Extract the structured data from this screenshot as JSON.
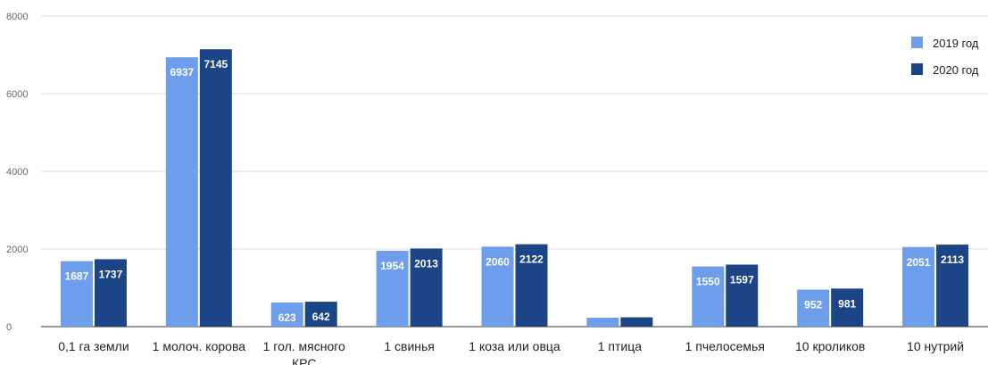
{
  "chart_data": {
    "type": "bar",
    "title": "",
    "xlabel": "",
    "ylabel": "",
    "ylim": [
      0,
      8000
    ],
    "yticks": [
      0,
      2000,
      4000,
      6000,
      8000
    ],
    "grid": true,
    "legend_position": "top-right",
    "categories": [
      "0,1 га земли",
      "1 молоч. корова",
      "1 гол. мясного КРС",
      "1 свинья",
      "1 коза или овца",
      "1 птица",
      "1 пчелосемья",
      "10 кроликов",
      "10 нутрий"
    ],
    "category_display_lines": [
      [
        "0,1 га земли"
      ],
      [
        "1 молоч. корова"
      ],
      [
        "1 гол. мясного",
        "КРС"
      ],
      [
        "1 свинья"
      ],
      [
        "1 коза или овца"
      ],
      [
        "1 птица"
      ],
      [
        "1 пчелосемья"
      ],
      [
        "10 кроликов"
      ],
      [
        "10 нутрий"
      ]
    ],
    "series": [
      {
        "name": "2019 год",
        "color": "#6e9eeb",
        "values": [
          1687,
          6937,
          623,
          1954,
          2060,
          230,
          1550,
          952,
          2051
        ],
        "labels": [
          "1687",
          "6937",
          "623",
          "1954",
          "2060",
          "",
          "1550",
          "952",
          "2051"
        ]
      },
      {
        "name": "2020 год",
        "color": "#1c4587",
        "values": [
          1737,
          7145,
          642,
          2013,
          2122,
          240,
          1597,
          981,
          2113
        ],
        "labels": [
          "1737",
          "7145",
          "642",
          "2013",
          "2122",
          "",
          "1597",
          "981",
          "2113"
        ]
      }
    ]
  }
}
